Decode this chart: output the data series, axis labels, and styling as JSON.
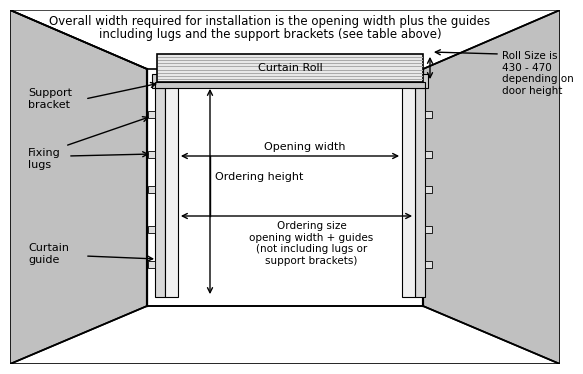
{
  "title_line1": "Overall width required for installation is the opening width plus the guides",
  "title_line2": "including lugs and the support brackets (see table above)",
  "bg_color": "#ffffff",
  "line_color": "#000000",
  "text_color": "#000000",
  "title_fontsize": 8.5,
  "label_fontsize": 8.0,
  "small_fontsize": 7.5,
  "roll_size_text": "Roll Size is\n430 - 470\ndepending on\ndoor height",
  "support_bracket_text": "Support\nbracket",
  "fixing_lugs_text": "Fixing\nlugs",
  "curtain_guide_text": "Curtain\nguide",
  "opening_width_text": "Opening width",
  "ordering_height_text": "Ordering height",
  "ordering_size_text": "Ordering size\nopening width + guides\n(not including lugs or\nsupport brackets)",
  "curtain_roll_text": "Curtain Roll"
}
